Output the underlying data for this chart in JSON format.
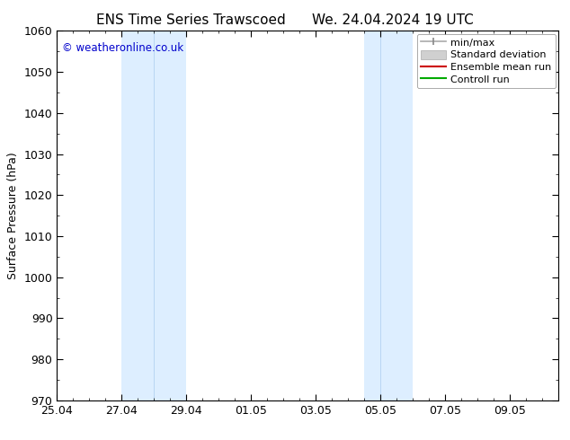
{
  "title_left": "ENS Time Series Trawscoed",
  "title_right": "We. 24.04.2024 19 UTC",
  "ylabel": "Surface Pressure (hPa)",
  "ylim": [
    970,
    1060
  ],
  "yticks": [
    970,
    980,
    990,
    1000,
    1010,
    1020,
    1030,
    1040,
    1050,
    1060
  ],
  "xtick_labels": [
    "25.04",
    "27.04",
    "29.04",
    "01.05",
    "03.05",
    "05.05",
    "07.05",
    "09.05"
  ],
  "xtick_positions": [
    0,
    2,
    4,
    6,
    8,
    10,
    12,
    14
  ],
  "xlim": [
    0,
    15.5
  ],
  "band1_x1": 2.0,
  "band1_xmid": 3.0,
  "band1_x2": 4.0,
  "band2_x1": 9.5,
  "band2_xmid": 10.0,
  "band2_x2": 11.0,
  "band_color": "#ddeeff",
  "band_edge_color": "#aaccee",
  "copyright_text": "© weatheronline.co.uk",
  "copyright_color": "#0000cc",
  "bg_color": "#ffffff",
  "title_fontsize": 11,
  "axis_label_fontsize": 9,
  "tick_fontsize": 9,
  "legend_fontsize": 8
}
